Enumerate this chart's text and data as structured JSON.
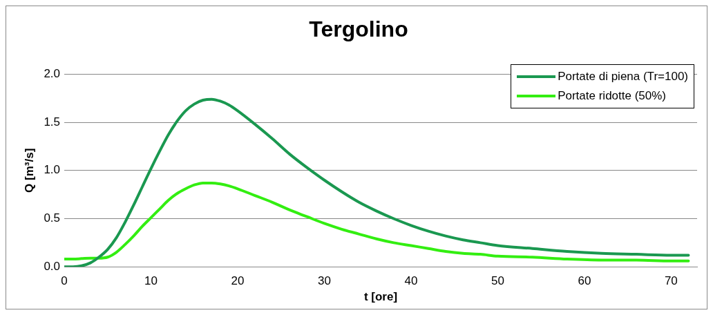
{
  "chart_data": {
    "type": "line",
    "title": "Tergolino",
    "xlabel": "t [ore]",
    "ylabel": "Q [m³/s]",
    "x": [
      0,
      1,
      2,
      3,
      4,
      5,
      6,
      7,
      8,
      9,
      10,
      11,
      12,
      13,
      14,
      15,
      16,
      17,
      18,
      19,
      20,
      22,
      24,
      26,
      28,
      30,
      32,
      34,
      36,
      38,
      40,
      42,
      44,
      46,
      48,
      50,
      54,
      58,
      62,
      66,
      70,
      72
    ],
    "series": [
      {
        "name": "Portate di piena (Tr=100)",
        "color": "#1a9850",
        "values": [
          0,
          0,
          0.01,
          0.04,
          0.1,
          0.18,
          0.3,
          0.46,
          0.64,
          0.83,
          1.02,
          1.2,
          1.37,
          1.51,
          1.62,
          1.69,
          1.73,
          1.74,
          1.72,
          1.68,
          1.62,
          1.48,
          1.33,
          1.17,
          1.03,
          0.9,
          0.78,
          0.67,
          0.58,
          0.5,
          0.43,
          0.37,
          0.32,
          0.28,
          0.25,
          0.22,
          0.19,
          0.16,
          0.14,
          0.13,
          0.12,
          0.12
        ]
      },
      {
        "name": "Portate ridotte (50%)",
        "color": "#33ee11",
        "values": [
          0.08,
          0.08,
          0.085,
          0.09,
          0.09,
          0.1,
          0.15,
          0.23,
          0.32,
          0.42,
          0.51,
          0.6,
          0.69,
          0.76,
          0.81,
          0.85,
          0.87,
          0.87,
          0.86,
          0.84,
          0.81,
          0.74,
          0.67,
          0.59,
          0.52,
          0.45,
          0.39,
          0.34,
          0.29,
          0.25,
          0.22,
          0.19,
          0.16,
          0.14,
          0.13,
          0.11,
          0.1,
          0.08,
          0.07,
          0.07,
          0.06,
          0.06
        ]
      }
    ],
    "xlim": [
      0,
      73
    ],
    "xticks": [
      0,
      10,
      20,
      30,
      40,
      50,
      60,
      70
    ],
    "ylim": [
      0,
      2
    ],
    "yticks": [
      {
        "value": 0,
        "label": "0.0"
      },
      {
        "value": 0.5,
        "label": "0.5"
      },
      {
        "value": 1,
        "label": "1.0"
      },
      {
        "value": 1.5,
        "label": "1.5"
      },
      {
        "value": 2,
        "label": "2.0"
      }
    ],
    "grid": "y",
    "legend": "top right",
    "marker": "none",
    "line_style": "solid"
  }
}
